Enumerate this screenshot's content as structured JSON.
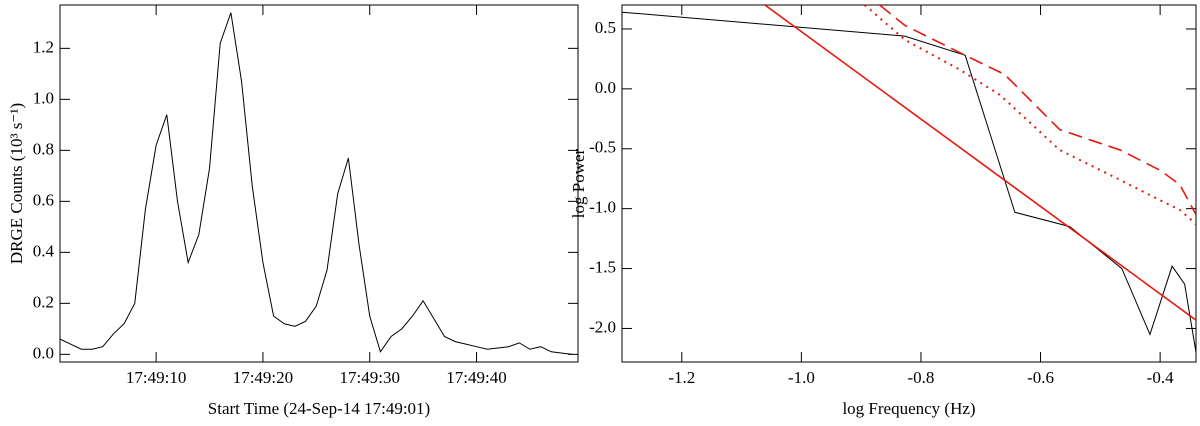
{
  "chart_data": [
    {
      "type": "line",
      "xlabel": "Start Time (24-Sep-14 17:49:01)",
      "ylabel": "DRGE Counts (10³ s⁻¹)",
      "color": "#000000",
      "x": [
        0,
        1,
        2,
        3,
        4,
        5,
        6,
        7,
        8,
        9,
        10,
        11,
        12,
        13,
        14,
        15,
        16,
        17,
        18,
        19,
        20,
        21,
        22,
        23,
        24,
        25,
        26,
        27,
        28,
        29,
        30,
        31,
        32,
        33,
        34,
        35,
        36,
        37,
        38,
        39,
        40,
        41,
        42,
        43,
        44,
        45,
        46,
        47,
        48
      ],
      "values": [
        0.06,
        0.04,
        0.02,
        0.02,
        0.03,
        0.08,
        0.12,
        0.2,
        0.57,
        0.82,
        0.94,
        0.6,
        0.36,
        0.47,
        0.73,
        1.22,
        1.34,
        1.07,
        0.66,
        0.36,
        0.15,
        0.12,
        0.11,
        0.13,
        0.19,
        0.33,
        0.63,
        0.77,
        0.43,
        0.15,
        0.01,
        0.07,
        0.1,
        0.15,
        0.21,
        0.14,
        0.07,
        0.05,
        0.04,
        0.03,
        0.02,
        0.025,
        0.03,
        0.045,
        0.02,
        0.03,
        0.01,
        0.005,
        0.0
      ],
      "xlim": [
        0,
        48.5
      ],
      "xticks": [
        {
          "value": 9,
          "label": "17:49:10"
        },
        {
          "value": 19,
          "label": "17:49:20"
        },
        {
          "value": 29,
          "label": "17:49:30"
        },
        {
          "value": 39,
          "label": "17:49:40"
        }
      ],
      "ylim": [
        -0.03,
        1.37
      ],
      "yticks": [
        {
          "value": 0,
          "label": "0.0"
        },
        0.2,
        0.4,
        0.6,
        0.8,
        {
          "value": 1,
          "label": "1.0"
        },
        1.2
      ]
    },
    {
      "type": "line",
      "xlabel": "log Frequency (Hz)",
      "ylabel": "log Power",
      "series": [
        {
          "color": "#000000",
          "style": "solid",
          "x": [
            -1.3,
            -0.827,
            -0.726,
            -0.643,
            -0.551,
            -0.464,
            -0.417,
            -0.38,
            -0.359,
            -0.34
          ],
          "values": [
            0.64,
            0.44,
            0.28,
            -1.03,
            -1.15,
            -1.5,
            -2.05,
            -1.48,
            -1.63,
            -2.2
          ]
        },
        {
          "color": "#e8160c",
          "style": "solid",
          "x": [
            -1.061,
            -0.34
          ],
          "values": [
            0.7,
            -1.93
          ]
        },
        {
          "color": "#e8160c",
          "style": "dashed",
          "x": [
            -0.869,
            -0.827,
            -0.726,
            -0.66,
            -0.568,
            -0.467,
            -0.4,
            -0.367,
            -0.34
          ],
          "values": [
            0.7,
            0.53,
            0.28,
            0.12,
            -0.34,
            -0.51,
            -0.68,
            -0.8,
            -1.05
          ]
        },
        {
          "color": "#e8160c",
          "style": "dotted",
          "x": [
            -0.894,
            -0.827,
            -0.735,
            -0.668,
            -0.568,
            -0.467,
            -0.4,
            -0.367,
            -0.34
          ],
          "values": [
            0.7,
            0.41,
            0.16,
            -0.05,
            -0.51,
            -0.76,
            -0.93,
            -1.01,
            -1.13
          ]
        }
      ],
      "xlim": [
        -1.3,
        -0.34
      ],
      "xticks": [
        -1.2,
        {
          "value": -1,
          "label": "-1.0"
        },
        -0.8,
        -0.6,
        -0.4
      ],
      "ylim": [
        -2.28,
        0.7
      ],
      "yticks": [
        0.5,
        {
          "value": 0,
          "label": "0.0"
        },
        -0.5,
        {
          "value": -1,
          "label": "-1.0"
        },
        {
          "value": -1.5,
          "label": "-1.5"
        },
        {
          "value": -2,
          "label": "-2.0"
        }
      ]
    }
  ]
}
